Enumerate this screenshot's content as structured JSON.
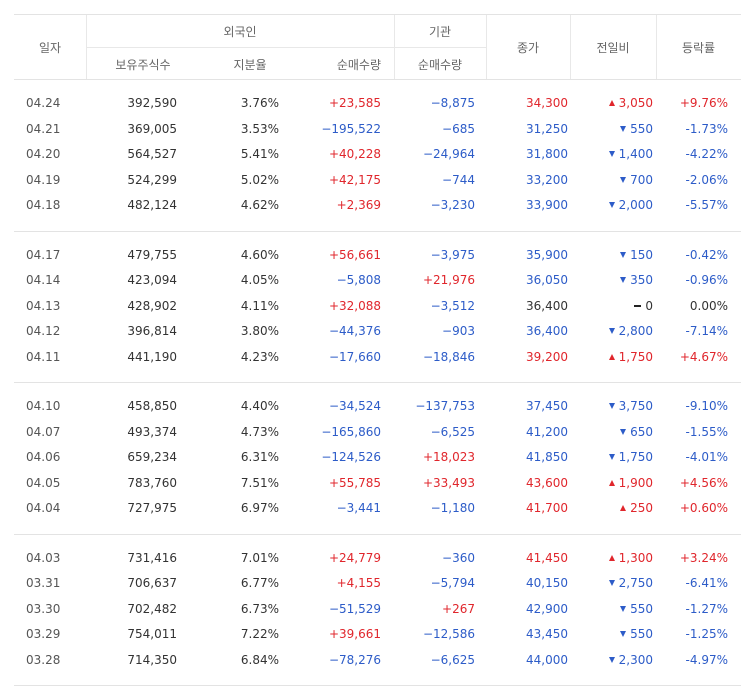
{
  "header": {
    "date": "일자",
    "foreign": "외국인",
    "institution": "기관",
    "close": "종가",
    "change": "전일비",
    "rate": "등락률",
    "holdings": "보유주식수",
    "ratio": "지분율",
    "foreign_net": "순매수량",
    "institution_net": "순매수량"
  },
  "table": {
    "groups": [
      [
        [
          "04.24",
          "392,590",
          "3.76%",
          "+23,585",
          "−8,875",
          "34,300",
          "3,050",
          "+9.76%"
        ],
        [
          "04.21",
          "369,005",
          "3.53%",
          "−195,522",
          "−685",
          "31,250",
          "550",
          "-1.73%"
        ],
        [
          "04.20",
          "564,527",
          "5.41%",
          "+40,228",
          "−24,964",
          "31,800",
          "1,400",
          "-4.22%"
        ],
        [
          "04.19",
          "524,299",
          "5.02%",
          "+42,175",
          "−744",
          "33,200",
          "700",
          "-2.06%"
        ],
        [
          "04.18",
          "482,124",
          "4.62%",
          "+2,369",
          "−3,230",
          "33,900",
          "2,000",
          "-5.57%"
        ]
      ],
      [
        [
          "04.17",
          "479,755",
          "4.60%",
          "+56,661",
          "−3,975",
          "35,900",
          "150",
          "-0.42%"
        ],
        [
          "04.14",
          "423,094",
          "4.05%",
          "−5,808",
          "+21,976",
          "36,050",
          "350",
          "-0.96%"
        ],
        [
          "04.13",
          "428,902",
          "4.11%",
          "+32,088",
          "−3,512",
          "36,400",
          "0",
          "0.00%"
        ],
        [
          "04.12",
          "396,814",
          "3.80%",
          "−44,376",
          "−903",
          "36,400",
          "2,800",
          "-7.14%"
        ],
        [
          "04.11",
          "441,190",
          "4.23%",
          "−17,660",
          "−18,846",
          "39,200",
          "1,750",
          "+4.67%"
        ]
      ],
      [
        [
          "04.10",
          "458,850",
          "4.40%",
          "−34,524",
          "−137,753",
          "37,450",
          "3,750",
          "-9.10%"
        ],
        [
          "04.07",
          "493,374",
          "4.73%",
          "−165,860",
          "−6,525",
          "41,200",
          "650",
          "-1.55%"
        ],
        [
          "04.06",
          "659,234",
          "6.31%",
          "−124,526",
          "+18,023",
          "41,850",
          "1,750",
          "-4.01%"
        ],
        [
          "04.05",
          "783,760",
          "7.51%",
          "+55,785",
          "+33,493",
          "43,600",
          "1,900",
          "+4.56%"
        ],
        [
          "04.04",
          "727,975",
          "6.97%",
          "−3,441",
          "−1,180",
          "41,700",
          "250",
          "+0.60%"
        ]
      ],
      [
        [
          "04.03",
          "731,416",
          "7.01%",
          "+24,779",
          "−360",
          "41,450",
          "1,300",
          "+3.24%"
        ],
        [
          "03.31",
          "706,637",
          "6.77%",
          "+4,155",
          "−5,794",
          "40,150",
          "2,750",
          "-6.41%"
        ],
        [
          "03.30",
          "702,482",
          "6.73%",
          "−51,529",
          "+267",
          "42,900",
          "550",
          "-1.27%"
        ],
        [
          "03.29",
          "754,011",
          "7.22%",
          "+39,661",
          "−12,586",
          "43,450",
          "550",
          "-1.25%"
        ],
        [
          "03.28",
          "714,350",
          "6.84%",
          "−78,276",
          "−6,625",
          "44,000",
          "2,300",
          "-4.97%"
        ]
      ]
    ]
  }
}
